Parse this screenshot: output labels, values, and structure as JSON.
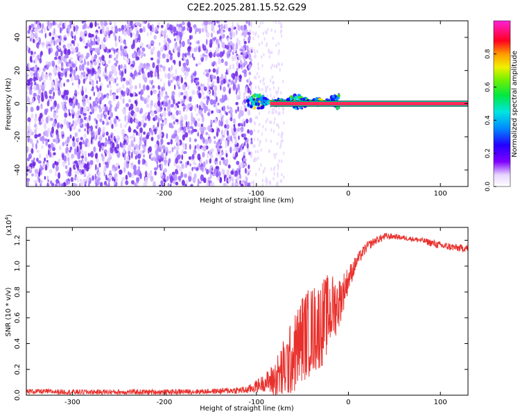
{
  "title": "C2E2.2025.281.15.52.G29",
  "colors": {
    "snr_line": "#e8302c",
    "frame": "#000000",
    "background": "#ffffff",
    "spectral_band": "#ff2a5a",
    "scatter_dense": "#6a00d8",
    "scatter_light": "#c9a8ff"
  },
  "chart_data": [
    {
      "type": "heatmap",
      "name": "spectrogram",
      "xlabel": "Height of straight line (km)",
      "ylabel": "Frequency (Hz)",
      "xlim": [
        -350,
        130
      ],
      "ylim": [
        -50,
        50
      ],
      "xticks": [
        -300,
        -200,
        -100,
        0,
        100
      ],
      "yticks": [
        -40,
        -20,
        0,
        20,
        40
      ],
      "x_tick_labels": [
        "-300",
        "-200",
        "-100",
        "0",
        "100"
      ],
      "y_tick_labels": [
        "-40",
        "-20",
        "0",
        "20",
        "40"
      ],
      "features": [
        {
          "name": "noise-field",
          "x_range": [
            -350,
            -105
          ],
          "f_range": [
            -50,
            50
          ],
          "level": 0.15
        },
        {
          "name": "carrier-band",
          "x_range": [
            -110,
            130
          ],
          "f_center": 0,
          "level": 1.0
        },
        {
          "name": "doppler-wobble",
          "x_range": [
            -110,
            -10
          ],
          "f_range": [
            -5,
            6
          ],
          "level": 0.45
        }
      ],
      "colorbar": {
        "label": "Normalized spectral amplitude",
        "ticks": [
          0.0,
          0.2,
          0.4,
          0.6,
          0.8
        ],
        "tick_labels": [
          "0.0",
          "0.2",
          "0.4",
          "0.6",
          "0.8"
        ],
        "range": [
          0,
          1
        ]
      }
    },
    {
      "type": "line",
      "name": "snr",
      "xlabel": "Height of straight line (km)",
      "ylabel": "SNR (10 * v/v)",
      "scale_label": "(x10",
      "scale_exponent": "4",
      "scale_suffix": ")",
      "xlim": [
        -350,
        130
      ],
      "ylim": [
        0,
        1.3
      ],
      "xticks": [
        -300,
        -200,
        -100,
        0,
        100
      ],
      "yticks": [
        0.0,
        0.2,
        0.4,
        0.6,
        0.8,
        1.0,
        1.2
      ],
      "x_tick_labels": [
        "-300",
        "-200",
        "-100",
        "0",
        "100"
      ],
      "y_tick_labels": [
        "0.0",
        "0.2",
        "0.4",
        "0.6",
        "0.8",
        "1.0",
        "1.2"
      ],
      "series": [
        {
          "name": "SNR",
          "x": [
            -350,
            -300,
            -250,
            -200,
            -150,
            -110,
            -100,
            -90,
            -80,
            -70,
            -60,
            -50,
            -40,
            -30,
            -20,
            -10,
            0,
            10,
            20,
            30,
            40,
            50,
            60,
            70,
            80,
            90,
            100,
            110,
            120,
            130
          ],
          "y": [
            0.03,
            0.025,
            0.025,
            0.025,
            0.03,
            0.04,
            0.07,
            0.1,
            0.12,
            0.2,
            0.3,
            0.45,
            0.5,
            0.55,
            0.65,
            0.72,
            0.9,
            1.05,
            1.15,
            1.2,
            1.23,
            1.23,
            1.22,
            1.21,
            1.2,
            1.18,
            1.16,
            1.15,
            1.14,
            1.14
          ],
          "noise_amp": [
            0.02,
            0.02,
            0.02,
            0.02,
            0.02,
            0.03,
            0.05,
            0.07,
            0.15,
            0.25,
            0.3,
            0.35,
            0.35,
            0.35,
            0.3,
            0.2,
            0.1,
            0.05,
            0.04,
            0.03,
            0.03,
            0.02,
            0.02,
            0.02,
            0.02,
            0.03,
            0.03,
            0.03,
            0.03,
            0.03
          ]
        }
      ]
    }
  ]
}
